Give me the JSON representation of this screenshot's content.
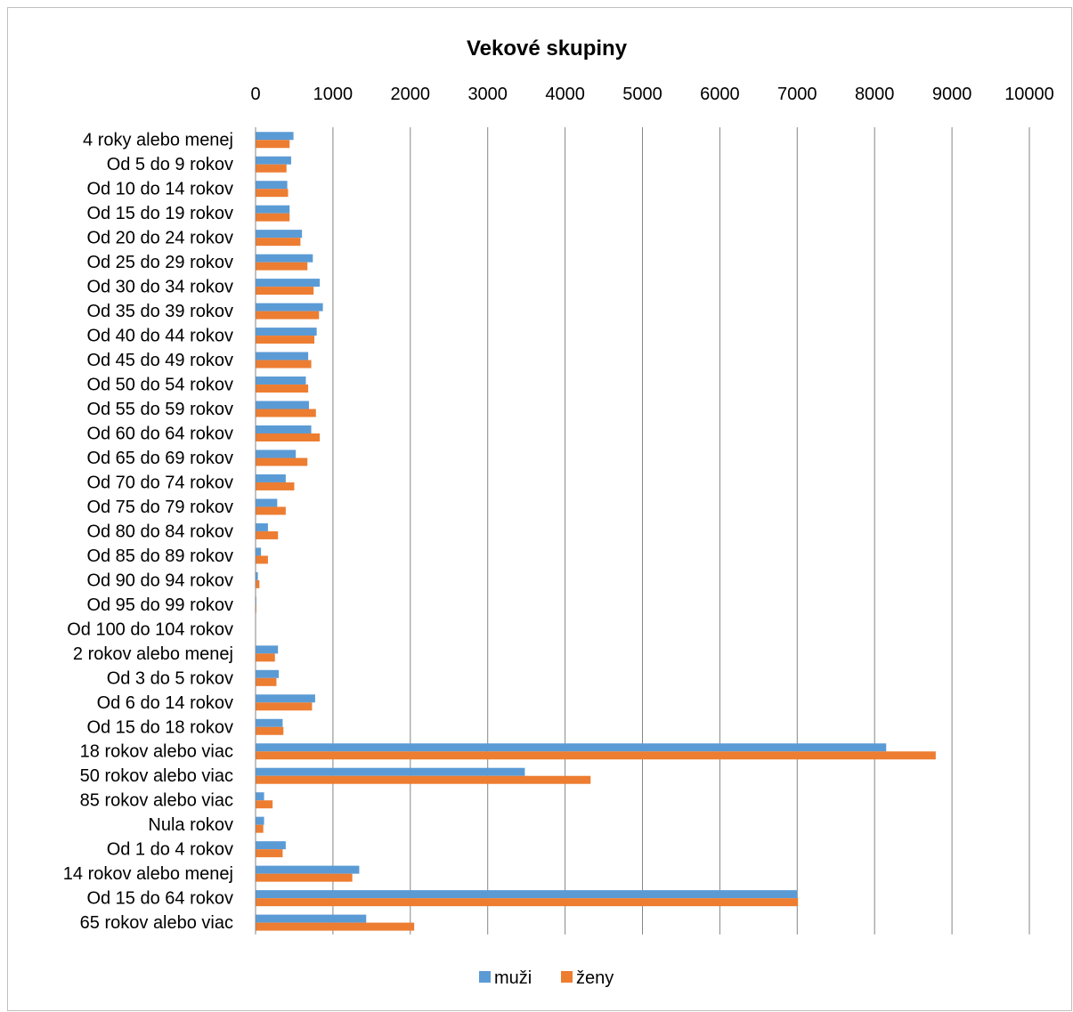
{
  "chart_data": {
    "type": "bar",
    "orientation": "horizontal",
    "title": "Vekové skupiny",
    "xlim": [
      0,
      10000
    ],
    "x_ticks": [
      "0",
      "1000",
      "2000",
      "3000",
      "4000",
      "5000",
      "6000",
      "7000",
      "8000",
      "9000",
      "10000"
    ],
    "grid": true,
    "legend_position": "bottom",
    "categories": [
      "4 roky alebo menej",
      "Od 5 do 9 rokov",
      "Od 10 do 14 rokov",
      "Od 15 do 19 rokov",
      "Od 20 do 24 rokov",
      "Od 25 do 29 rokov",
      "Od 30 do 34 rokov",
      "Od 35 do 39 rokov",
      "Od 40 do 44 rokov",
      "Od 45 do 49 rokov",
      "Od 50 do 54 rokov",
      "Od 55 do 59 rokov",
      "Od 60 do 64 rokov",
      "Od 65 do 69 rokov",
      "Od 70 do 74 rokov",
      "Od 75 do 79 rokov",
      "Od 80 do 84 rokov",
      "Od 85 do 89 rokov",
      "Od 90 do 94 rokov",
      "Od 95 do 99 rokov",
      "Od 100 do 104 rokov",
      "2 rokov alebo menej",
      "Od 3 do 5 rokov",
      "Od 6 do 14 rokov",
      "Od 15 do 18 rokov",
      "18 rokov alebo viac",
      "50 rokov alebo viac",
      "85 rokov alebo viac",
      "Nula rokov",
      "Od 1 do 4 rokov",
      "14 rokov alebo menej",
      "Od 15 do 64 rokov",
      "65 rokov alebo viac"
    ],
    "series": [
      {
        "name": "muži",
        "color": "#5b9bd5",
        "values": [
          490,
          460,
          410,
          440,
          600,
          740,
          830,
          870,
          790,
          680,
          650,
          690,
          720,
          520,
          390,
          280,
          160,
          70,
          30,
          10,
          0,
          290,
          300,
          770,
          350,
          8150,
          3480,
          110,
          110,
          390,
          1340,
          7000,
          1430
        ]
      },
      {
        "name": "ženy",
        "color": "#ed7d31",
        "values": [
          440,
          400,
          420,
          440,
          580,
          670,
          750,
          820,
          760,
          720,
          680,
          780,
          830,
          670,
          500,
          390,
          290,
          160,
          50,
          10,
          0,
          250,
          270,
          730,
          360,
          8790,
          4330,
          220,
          100,
          350,
          1250,
          7010,
          2050
        ]
      }
    ]
  }
}
